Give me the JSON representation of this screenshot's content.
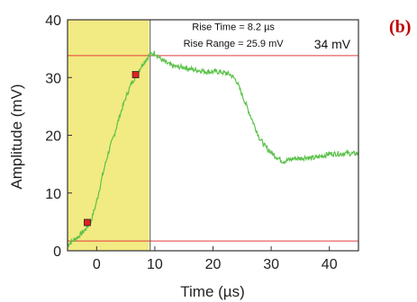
{
  "panel_label": "(b)",
  "colors": {
    "signal": "#5cc24a",
    "highlight": "#f2ea82",
    "guide_line": "#e23b3b",
    "marker_fill": "#e02020",
    "axis": "#333333"
  },
  "chart_data": {
    "type": "line",
    "title": "",
    "xlabel": "Time (µs)",
    "ylabel": "Amplitude (mV)",
    "xlim": [
      -5,
      45
    ],
    "ylim": [
      0,
      40
    ],
    "xticks": [
      0,
      10,
      20,
      30,
      40
    ],
    "yticks": [
      0,
      10,
      20,
      30,
      40
    ],
    "grid": false,
    "series": [
      {
        "x": [
          -5,
          -4,
          -3,
          -2,
          -1,
          0,
          1,
          2,
          3,
          4,
          5,
          6,
          7,
          8,
          9,
          10,
          11,
          12,
          13,
          14,
          15,
          16,
          17,
          18,
          19,
          20,
          21,
          22,
          23,
          24,
          25,
          26,
          27,
          28,
          29,
          30,
          31,
          32,
          33,
          34,
          35,
          36,
          37,
          38,
          39,
          40,
          41,
          42,
          43,
          44,
          45
        ],
        "y": [
          1.0,
          1.8,
          2.6,
          3.6,
          5.0,
          8.5,
          13.0,
          17.0,
          20.0,
          23.5,
          26.5,
          29.0,
          30.8,
          32.5,
          33.8,
          34.3,
          33.2,
          32.5,
          32.0,
          31.8,
          31.8,
          31.5,
          31.3,
          31.2,
          31.0,
          31.0,
          31.0,
          30.8,
          30.5,
          29.5,
          27.0,
          24.5,
          22.0,
          19.5,
          18.0,
          17.0,
          16.2,
          15.5,
          15.7,
          16.0,
          16.0,
          16.2,
          16.0,
          16.2,
          16.5,
          16.8,
          16.8,
          16.8,
          16.9,
          16.8,
          16.8
        ]
      }
    ],
    "highlight_region": [
      -5,
      9
    ],
    "reference_lines": [
      {
        "axis": "y",
        "value": 1.7
      },
      {
        "axis": "y",
        "value": 33.8
      },
      {
        "axis": "x",
        "value": 9.2
      }
    ],
    "markers": [
      {
        "x": -1.6,
        "y": 4.9
      },
      {
        "x": 6.7,
        "y": 30.5
      }
    ],
    "annotations": [
      {
        "text": "Rise Time = 8.2 µs",
        "x": 23.5,
        "y": 38.2,
        "style": "small"
      },
      {
        "text": "Rise Range = 25.9 mV",
        "x": 23.5,
        "y": 35.3,
        "style": "small"
      },
      {
        "text": "34 mV",
        "x": 40.5,
        "y": 35.0,
        "style": "large"
      }
    ]
  }
}
